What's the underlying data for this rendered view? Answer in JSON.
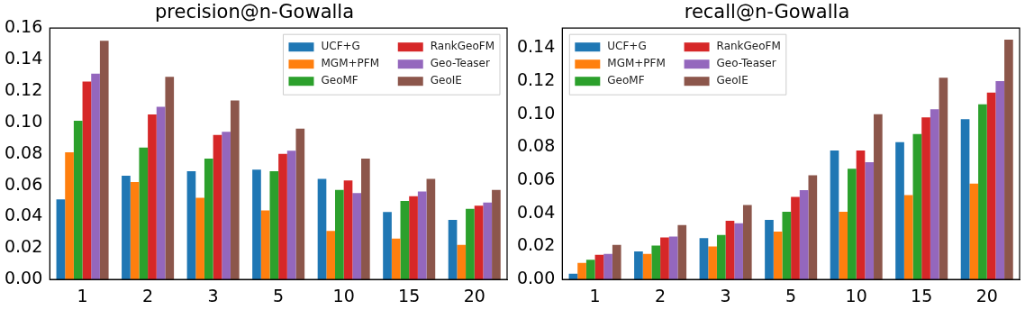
{
  "chart_data": [
    {
      "type": "bar",
      "title": "precision@n-Gowalla",
      "categories": [
        "1",
        "2",
        "3",
        "5",
        "10",
        "15",
        "20"
      ],
      "ylim": [
        0,
        0.16
      ],
      "yticks": [
        {
          "value": 0,
          "label": "0.00"
        },
        {
          "value": 0.02,
          "label": "0.02"
        },
        {
          "value": 0.04,
          "label": "0.04"
        },
        {
          "value": 0.06,
          "label": "0.06"
        },
        {
          "value": 0.08,
          "label": "0.08"
        },
        {
          "value": 0.1,
          "label": "0.10"
        },
        {
          "value": 0.12,
          "label": "0.12"
        },
        {
          "value": 0.14,
          "label": "0.14"
        },
        {
          "value": 0.16,
          "label": "0.16"
        }
      ],
      "grid": false,
      "legend": "top right",
      "series": [
        {
          "name": "UCF+G",
          "color": "#1f77b4",
          "values": [
            0.051,
            0.066,
            0.069,
            0.07,
            0.064,
            0.043,
            0.038
          ]
        },
        {
          "name": "MGM+PFM",
          "color": "#ff7f0e",
          "values": [
            0.081,
            0.062,
            0.052,
            0.044,
            0.031,
            0.026,
            0.022
          ]
        },
        {
          "name": "GeoMF",
          "color": "#2ca02c",
          "values": [
            0.101,
            0.084,
            0.077,
            0.069,
            0.057,
            0.05,
            0.045
          ]
        },
        {
          "name": "RankGeoFM",
          "color": "#d62728",
          "values": [
            0.126,
            0.105,
            0.092,
            0.08,
            0.063,
            0.053,
            0.047
          ]
        },
        {
          "name": "Geo-Teaser",
          "color": "#9467bd",
          "values": [
            0.131,
            0.11,
            0.094,
            0.082,
            0.055,
            0.056,
            0.049
          ]
        },
        {
          "name": "GeoIE",
          "color": "#8c564b",
          "values": [
            0.152,
            0.129,
            0.114,
            0.096,
            0.077,
            0.064,
            0.057
          ]
        }
      ]
    },
    {
      "type": "bar",
      "title": "recall@n-Gowalla",
      "categories": [
        "1",
        "2",
        "3",
        "5",
        "10",
        "15",
        "20"
      ],
      "ylim": [
        0,
        0.152
      ],
      "yticks": [
        {
          "value": 0,
          "label": "0.00"
        },
        {
          "value": 0.02,
          "label": "0.02"
        },
        {
          "value": 0.04,
          "label": "0.04"
        },
        {
          "value": 0.06,
          "label": "0.06"
        },
        {
          "value": 0.08,
          "label": "0.08"
        },
        {
          "value": 0.1,
          "label": "0.10"
        },
        {
          "value": 0.12,
          "label": "0.12"
        },
        {
          "value": 0.14,
          "label": "0.14"
        }
      ],
      "grid": false,
      "legend": "top left",
      "series": [
        {
          "name": "UCF+G",
          "color": "#1f77b4",
          "values": [
            0.0035,
            0.017,
            0.025,
            0.036,
            0.078,
            0.083,
            0.097
          ]
        },
        {
          "name": "MGM+PFM",
          "color": "#ff7f0e",
          "values": [
            0.01,
            0.0155,
            0.02,
            0.029,
            0.041,
            0.051,
            0.058
          ]
        },
        {
          "name": "GeoMF",
          "color": "#2ca02c",
          "values": [
            0.012,
            0.0205,
            0.027,
            0.041,
            0.067,
            0.088,
            0.106
          ]
        },
        {
          "name": "RankGeoFM",
          "color": "#d62728",
          "values": [
            0.015,
            0.0255,
            0.0355,
            0.05,
            0.078,
            0.098,
            0.113
          ]
        },
        {
          "name": "Geo-Teaser",
          "color": "#9467bd",
          "values": [
            0.0155,
            0.026,
            0.034,
            0.054,
            0.071,
            0.103,
            0.12
          ]
        },
        {
          "name": "GeoIE",
          "color": "#8c564b",
          "values": [
            0.021,
            0.033,
            0.045,
            0.063,
            0.1,
            0.122,
            0.145
          ]
        }
      ]
    }
  ]
}
